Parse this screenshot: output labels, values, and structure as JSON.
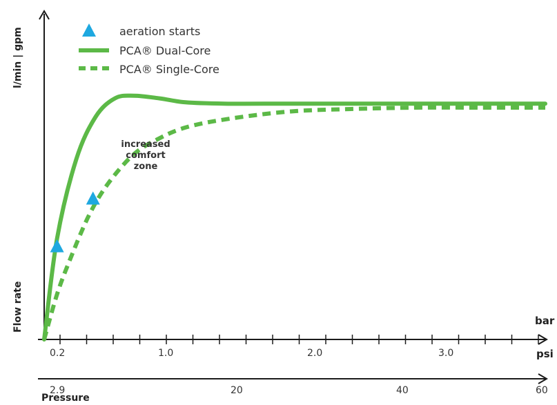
{
  "chart_data": {
    "type": "line",
    "y_axis_title": "Flow rate",
    "y_unit": "l/min | gpm",
    "x_axis_title": "Pressure",
    "x_units": [
      "bar",
      "psi"
    ],
    "bar_ticks": [
      "0.2",
      "1.0",
      "2.0",
      "3.0"
    ],
    "psi_ticks": [
      "2.9",
      "20",
      "40",
      "60"
    ],
    "series": [
      {
        "name": "PCA® Dual-Core",
        "style": "solid",
        "color": "#5cb947",
        "x": [
          0.1,
          0.2,
          0.35,
          0.5,
          0.65,
          0.8,
          1.0,
          1.2,
          1.5,
          2.0,
          2.5,
          3.0,
          3.5,
          4.0
        ],
        "y": [
          0.0,
          0.38,
          0.68,
          0.84,
          0.91,
          0.92,
          0.91,
          0.895,
          0.89,
          0.89,
          0.89,
          0.89,
          0.89,
          0.89
        ]
      },
      {
        "name": "PCA® Single-Core",
        "style": "dashed",
        "color": "#5cb947",
        "x": [
          0.1,
          0.2,
          0.3,
          0.45,
          0.6,
          0.8,
          1.0,
          1.2,
          1.5,
          2.0,
          2.5,
          3.0,
          3.5,
          4.0
        ],
        "y": [
          0.0,
          0.17,
          0.3,
          0.47,
          0.59,
          0.7,
          0.76,
          0.8,
          0.83,
          0.86,
          0.87,
          0.875,
          0.875,
          0.875
        ]
      }
    ],
    "markers": {
      "name": "aeration starts",
      "color": "#1ea8e0",
      "points": [
        {
          "series": "PCA® Dual-Core",
          "x": 0.2,
          "y": 0.35
        },
        {
          "series": "PCA® Single-Core",
          "x": 0.48,
          "y": 0.53
        }
      ]
    },
    "annotation": [
      "increased",
      "comfort",
      "zone"
    ],
    "legend_position": "top-left",
    "grid": false
  }
}
